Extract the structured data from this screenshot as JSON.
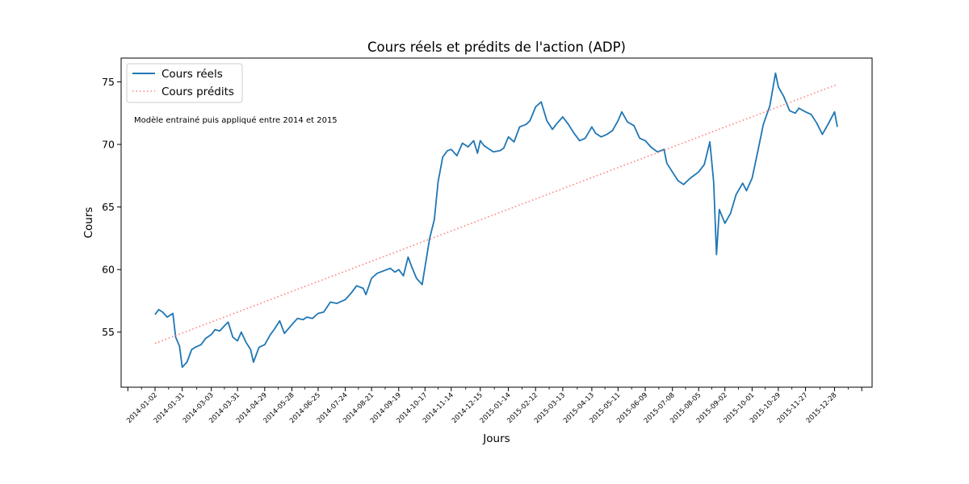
{
  "chart_data": {
    "type": "line",
    "title": "Cours réels et prédits de l'action (ADP)",
    "xlabel": "Jours",
    "ylabel": "Cours",
    "ylim": [
      50.6,
      76.9
    ],
    "yticks": [
      55,
      60,
      65,
      70,
      75
    ],
    "xticks": [
      "2014-01-02",
      "2014-01-31",
      "2014-03-03",
      "2014-03-31",
      "2014-04-29",
      "2014-05-28",
      "2014-06-25",
      "2014-07-24",
      "2014-08-21",
      "2014-09-19",
      "2014-10-17",
      "2014-11-14",
      "2014-12-15",
      "2015-01-14",
      "2015-02-12",
      "2015-03-13",
      "2015-04-13",
      "2015-05-11",
      "2015-06-09",
      "2015-07-08",
      "2015-08-05",
      "2015-09-02",
      "2015-10-01",
      "2015-10-29",
      "2015-11-27",
      "2015-12-28"
    ],
    "legend": {
      "placement": "top-left",
      "entries": [
        "Cours réels",
        "Cours prédits"
      ]
    },
    "annotation": "Modèle entrainé puis appliqué entre 2014 et 2015",
    "grid": false,
    "series": [
      {
        "name": "Cours réels",
        "color": "#1f77b4",
        "style": "solid",
        "points": [
          [
            "2014-01-02",
            56.4
          ],
          [
            "2014-01-06",
            56.8
          ],
          [
            "2014-01-10",
            56.6
          ],
          [
            "2014-01-15",
            56.2
          ],
          [
            "2014-01-21",
            56.5
          ],
          [
            "2014-01-24",
            54.6
          ],
          [
            "2014-01-28",
            53.9
          ],
          [
            "2014-01-31",
            52.2
          ],
          [
            "2014-02-05",
            52.6
          ],
          [
            "2014-02-10",
            53.6
          ],
          [
            "2014-02-14",
            53.8
          ],
          [
            "2014-02-20",
            54.0
          ],
          [
            "2014-02-25",
            54.5
          ],
          [
            "2014-03-03",
            54.8
          ],
          [
            "2014-03-07",
            55.2
          ],
          [
            "2014-03-12",
            55.1
          ],
          [
            "2014-03-17",
            55.5
          ],
          [
            "2014-03-21",
            55.8
          ],
          [
            "2014-03-26",
            54.6
          ],
          [
            "2014-03-31",
            54.3
          ],
          [
            "2014-04-04",
            55.0
          ],
          [
            "2014-04-09",
            54.2
          ],
          [
            "2014-04-14",
            53.6
          ],
          [
            "2014-04-17",
            52.6
          ],
          [
            "2014-04-23",
            53.8
          ],
          [
            "2014-04-29",
            54.0
          ],
          [
            "2014-05-05",
            54.8
          ],
          [
            "2014-05-09",
            55.2
          ],
          [
            "2014-05-15",
            55.9
          ],
          [
            "2014-05-20",
            54.9
          ],
          [
            "2014-05-28",
            55.6
          ],
          [
            "2014-06-03",
            56.1
          ],
          [
            "2014-06-09",
            56.0
          ],
          [
            "2014-06-13",
            56.2
          ],
          [
            "2014-06-19",
            56.1
          ],
          [
            "2014-06-25",
            56.5
          ],
          [
            "2014-07-01",
            56.6
          ],
          [
            "2014-07-08",
            57.4
          ],
          [
            "2014-07-15",
            57.3
          ],
          [
            "2014-07-24",
            57.6
          ],
          [
            "2014-07-30",
            58.1
          ],
          [
            "2014-08-05",
            58.7
          ],
          [
            "2014-08-12",
            58.5
          ],
          [
            "2014-08-15",
            58.0
          ],
          [
            "2014-08-21",
            59.3
          ],
          [
            "2014-08-27",
            59.7
          ],
          [
            "2014-09-03",
            59.9
          ],
          [
            "2014-09-10",
            60.1
          ],
          [
            "2014-09-15",
            59.8
          ],
          [
            "2014-09-19",
            60.0
          ],
          [
            "2014-09-24",
            59.5
          ],
          [
            "2014-09-29",
            61.0
          ],
          [
            "2014-10-03",
            60.2
          ],
          [
            "2014-10-08",
            59.3
          ],
          [
            "2014-10-14",
            58.8
          ],
          [
            "2014-10-17",
            60.2
          ],
          [
            "2014-10-22",
            62.5
          ],
          [
            "2014-10-27",
            64.0
          ],
          [
            "2014-10-31",
            67.0
          ],
          [
            "2014-11-05",
            69.0
          ],
          [
            "2014-11-10",
            69.5
          ],
          [
            "2014-11-14",
            69.6
          ],
          [
            "2014-11-20",
            69.1
          ],
          [
            "2014-11-26",
            70.1
          ],
          [
            "2014-12-02",
            69.8
          ],
          [
            "2014-12-08",
            70.3
          ],
          [
            "2014-12-12",
            69.3
          ],
          [
            "2014-12-15",
            70.3
          ],
          [
            "2014-12-19",
            69.9
          ],
          [
            "2014-12-29",
            69.4
          ],
          [
            "2015-01-05",
            69.5
          ],
          [
            "2015-01-09",
            69.7
          ],
          [
            "2015-01-14",
            70.6
          ],
          [
            "2015-01-20",
            70.2
          ],
          [
            "2015-01-26",
            71.4
          ],
          [
            "2015-02-02",
            71.6
          ],
          [
            "2015-02-06",
            71.9
          ],
          [
            "2015-02-12",
            73.0
          ],
          [
            "2015-02-18",
            73.4
          ],
          [
            "2015-02-24",
            71.9
          ],
          [
            "2015-03-02",
            71.2
          ],
          [
            "2015-03-06",
            71.6
          ],
          [
            "2015-03-13",
            72.2
          ],
          [
            "2015-03-19",
            71.6
          ],
          [
            "2015-03-25",
            70.9
          ],
          [
            "2015-03-31",
            70.3
          ],
          [
            "2015-04-06",
            70.5
          ],
          [
            "2015-04-13",
            71.4
          ],
          [
            "2015-04-17",
            70.9
          ],
          [
            "2015-04-23",
            70.6
          ],
          [
            "2015-04-29",
            70.8
          ],
          [
            "2015-05-05",
            71.1
          ],
          [
            "2015-05-11",
            71.9
          ],
          [
            "2015-05-15",
            72.6
          ],
          [
            "2015-05-21",
            71.8
          ],
          [
            "2015-05-28",
            71.5
          ],
          [
            "2015-06-03",
            70.5
          ],
          [
            "2015-06-09",
            70.3
          ],
          [
            "2015-06-15",
            69.8
          ],
          [
            "2015-06-22",
            69.4
          ],
          [
            "2015-06-29",
            69.6
          ],
          [
            "2015-07-02",
            68.5
          ],
          [
            "2015-07-08",
            67.8
          ],
          [
            "2015-07-14",
            67.1
          ],
          [
            "2015-07-20",
            66.8
          ],
          [
            "2015-07-27",
            67.3
          ],
          [
            "2015-08-05",
            67.8
          ],
          [
            "2015-08-11",
            68.4
          ],
          [
            "2015-08-17",
            70.2
          ],
          [
            "2015-08-21",
            67.0
          ],
          [
            "2015-08-24",
            61.2
          ],
          [
            "2015-08-27",
            64.8
          ],
          [
            "2015-09-02",
            63.7
          ],
          [
            "2015-09-08",
            64.5
          ],
          [
            "2015-09-14",
            66.0
          ],
          [
            "2015-09-21",
            66.9
          ],
          [
            "2015-09-25",
            66.3
          ],
          [
            "2015-10-01",
            67.3
          ],
          [
            "2015-10-07",
            69.4
          ],
          [
            "2015-10-13",
            71.6
          ],
          [
            "2015-10-20",
            73.1
          ],
          [
            "2015-10-26",
            75.7
          ],
          [
            "2015-10-29",
            74.6
          ],
          [
            "2015-11-04",
            73.8
          ],
          [
            "2015-11-10",
            72.7
          ],
          [
            "2015-11-16",
            72.5
          ],
          [
            "2015-11-20",
            72.9
          ],
          [
            "2015-11-27",
            72.6
          ],
          [
            "2015-12-03",
            72.4
          ],
          [
            "2015-12-09",
            71.7
          ],
          [
            "2015-12-15",
            70.8
          ],
          [
            "2015-12-21",
            71.6
          ],
          [
            "2015-12-28",
            72.6
          ],
          [
            "2015-12-31",
            71.4
          ]
        ]
      },
      {
        "name": "Cours prédits",
        "color": "#ff7f7f",
        "style": "dotted",
        "points": [
          [
            "2014-01-02",
            54.1
          ],
          [
            "2015-12-31",
            74.8
          ]
        ]
      }
    ]
  }
}
